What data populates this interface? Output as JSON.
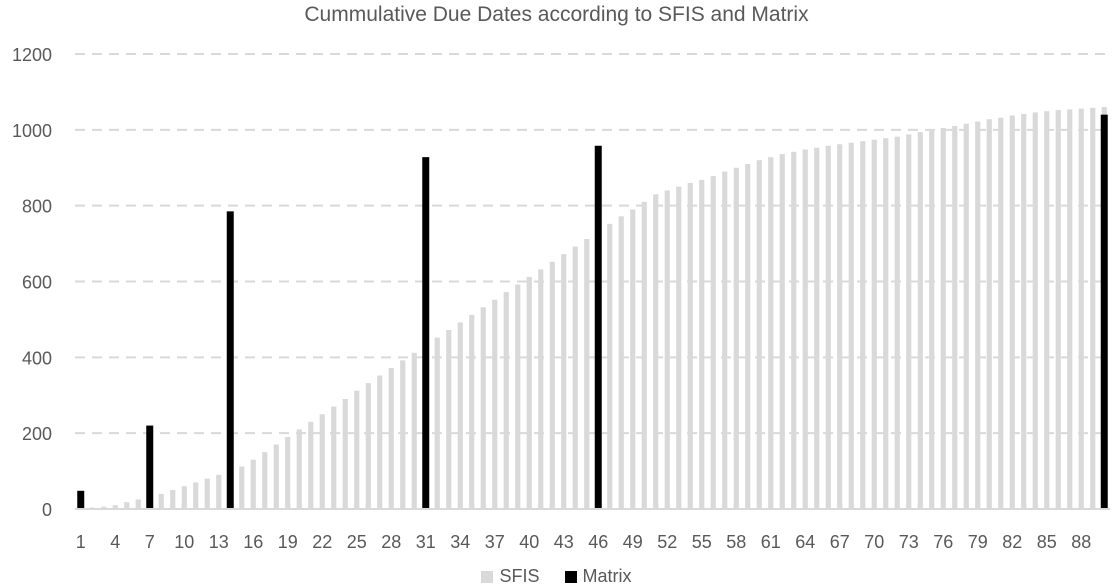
{
  "chart_data": {
    "type": "bar",
    "title": "Cummulative Due Dates according to SFIS and Matrix",
    "xlabel": "",
    "ylabel": "",
    "ylim": [
      0,
      1200
    ],
    "yticks": [
      0,
      200,
      400,
      600,
      800,
      1000,
      1200
    ],
    "x_range": [
      1,
      90
    ],
    "xticks": [
      1,
      4,
      7,
      10,
      13,
      16,
      19,
      22,
      25,
      28,
      31,
      34,
      37,
      40,
      43,
      46,
      49,
      52,
      55,
      58,
      61,
      64,
      67,
      70,
      73,
      76,
      79,
      82,
      85,
      88
    ],
    "grid": "horizontal dashed",
    "legend_position": "bottom",
    "series": [
      {
        "name": "SFIS",
        "color": "#d9d9d9",
        "x": [
          1,
          2,
          3,
          4,
          5,
          6,
          7,
          8,
          9,
          10,
          11,
          12,
          13,
          14,
          15,
          16,
          17,
          18,
          19,
          20,
          21,
          22,
          23,
          24,
          25,
          26,
          27,
          28,
          29,
          30,
          31,
          32,
          33,
          34,
          35,
          36,
          37,
          38,
          39,
          40,
          41,
          42,
          43,
          44,
          45,
          46,
          47,
          48,
          49,
          50,
          51,
          52,
          53,
          54,
          55,
          56,
          57,
          58,
          59,
          60,
          61,
          62,
          63,
          64,
          65,
          66,
          67,
          68,
          69,
          70,
          71,
          72,
          73,
          74,
          75,
          76,
          77,
          78,
          79,
          80,
          81,
          82,
          83,
          84,
          85,
          86,
          87,
          88,
          89,
          90
        ],
        "values": [
          2,
          4,
          6,
          10,
          18,
          25,
          32,
          40,
          50,
          60,
          70,
          80,
          90,
          100,
          112,
          130,
          150,
          170,
          190,
          210,
          230,
          250,
          270,
          290,
          312,
          332,
          352,
          372,
          392,
          412,
          432,
          452,
          472,
          492,
          512,
          532,
          552,
          572,
          592,
          612,
          632,
          652,
          672,
          692,
          712,
          732,
          752,
          772,
          790,
          810,
          830,
          840,
          850,
          860,
          868,
          878,
          890,
          900,
          910,
          920,
          928,
          936,
          942,
          948,
          953,
          958,
          962,
          966,
          970,
          974,
          978,
          982,
          988,
          994,
          998,
          1005,
          1010,
          1016,
          1022,
          1028,
          1032,
          1038,
          1042,
          1046,
          1049,
          1052,
          1054,
          1056,
          1058,
          1060
        ]
      },
      {
        "name": "Matrix",
        "color": "#000000",
        "x": [
          1,
          7,
          14,
          31,
          46,
          90
        ],
        "values": [
          48,
          220,
          785,
          928,
          958,
          1040
        ]
      }
    ]
  }
}
